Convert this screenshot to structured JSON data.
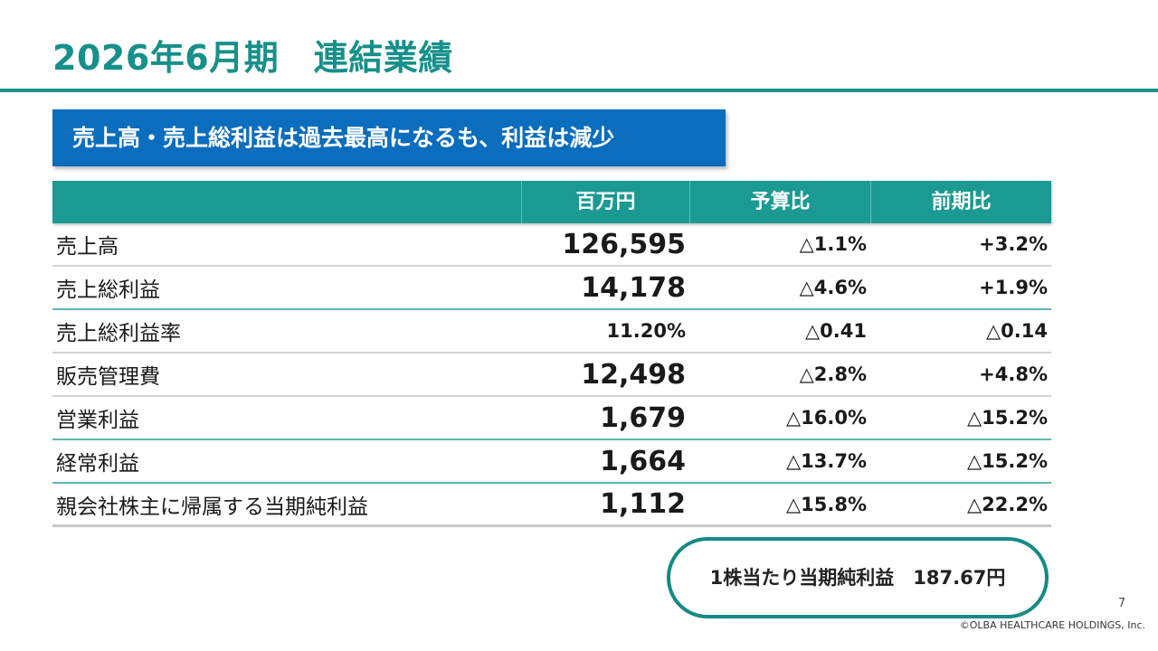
{
  "slide": {
    "title": "2026年6月期　連結業績",
    "subtitle": "売上高・売上総利益は過去最高になるも、利益は減少",
    "page_number": "7",
    "copyright": "©OLBA HEALTHCARE HOLDINGS, Inc."
  },
  "colors": {
    "title_teal": "#16908a",
    "header_teal": "#1a9a93",
    "subtitle_blue": "#0b6dbd",
    "eps_border": "#138a86"
  },
  "table": {
    "headers": [
      "",
      "百万円",
      "予算比",
      "前期比"
    ],
    "rows": [
      {
        "label": "売上高",
        "value": "126,595",
        "budget": "△1.1%",
        "prior": "+3.2%"
      },
      {
        "label": "売上総利益",
        "value": "14,178",
        "budget": "△4.6%",
        "prior": "+1.9%"
      },
      {
        "label": "売上総利益率",
        "value": "11.20%",
        "budget": "△0.41",
        "prior": "△0.14"
      },
      {
        "label": "販売管理費",
        "value": "12,498",
        "budget": "△2.8%",
        "prior": "+4.8%"
      },
      {
        "label": "営業利益",
        "value": "1,679",
        "budget": "△16.0%",
        "prior": "△15.2%"
      },
      {
        "label": "経常利益",
        "value": "1,664",
        "budget": "△13.7%",
        "prior": "△15.2%"
      },
      {
        "label": "親会社株主に帰属する当期純利益",
        "value": "1,112",
        "budget": "△15.8%",
        "prior": "△22.2%"
      }
    ]
  },
  "eps": {
    "text": "1株当たり当期純利益　187.67円"
  }
}
